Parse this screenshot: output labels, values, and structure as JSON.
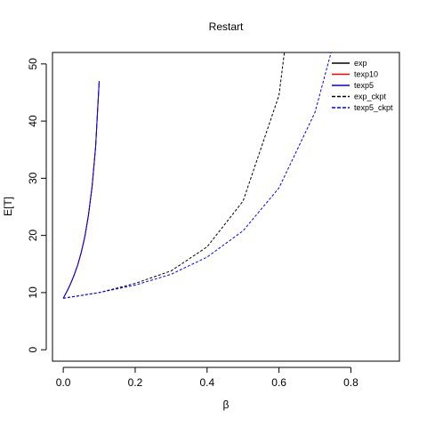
{
  "chart_data": {
    "type": "line",
    "title": "Restart",
    "xlabel": "β",
    "ylabel": "E[T]",
    "xlim": [
      -0.03,
      0.935
    ],
    "ylim": [
      -2,
      52
    ],
    "xticks": [
      0.0,
      0.2,
      0.4,
      0.6,
      0.8
    ],
    "xtick_labels": [
      "0.0",
      "0.2",
      "0.4",
      "0.6",
      "0.8"
    ],
    "yticks": [
      0,
      10,
      20,
      30,
      40,
      50
    ],
    "ytick_labels": [
      "0",
      "10",
      "20",
      "30",
      "40",
      "50"
    ],
    "grid": false,
    "legend_position": "top-right",
    "series": [
      {
        "name": "exp",
        "color": "#000000",
        "dash": "solid",
        "points": [
          [
            0.0,
            9.0
          ],
          [
            0.01,
            10.2
          ],
          [
            0.02,
            11.5
          ],
          [
            0.03,
            13.0
          ],
          [
            0.04,
            14.8
          ],
          [
            0.05,
            17.0
          ],
          [
            0.06,
            19.8
          ],
          [
            0.07,
            23.5
          ],
          [
            0.08,
            28.5
          ],
          [
            0.09,
            35.5
          ],
          [
            0.1,
            47.0
          ]
        ]
      },
      {
        "name": "texp10",
        "color": "#ff0000",
        "dash": "solid",
        "points": [
          [
            0.0,
            9.0
          ],
          [
            0.01,
            10.2
          ],
          [
            0.02,
            11.5
          ],
          [
            0.03,
            13.0
          ],
          [
            0.04,
            14.8
          ],
          [
            0.05,
            17.0
          ],
          [
            0.06,
            19.8
          ],
          [
            0.07,
            23.5
          ],
          [
            0.08,
            28.5
          ],
          [
            0.09,
            35.5
          ],
          [
            0.1,
            47.0
          ]
        ]
      },
      {
        "name": "texp5",
        "color": "#0000ff",
        "dash": "solid",
        "points": [
          [
            0.0,
            9.0
          ],
          [
            0.01,
            10.2
          ],
          [
            0.02,
            11.5
          ],
          [
            0.03,
            13.0
          ],
          [
            0.04,
            14.8
          ],
          [
            0.05,
            17.0
          ],
          [
            0.06,
            19.8
          ],
          [
            0.07,
            23.5
          ],
          [
            0.08,
            28.5
          ],
          [
            0.09,
            35.5
          ],
          [
            0.1,
            47.0
          ]
        ]
      },
      {
        "name": "exp_ckpt",
        "color": "#000000",
        "dash": "dashed",
        "points": [
          [
            0.0,
            9.0
          ],
          [
            0.1,
            10.0
          ],
          [
            0.2,
            11.6
          ],
          [
            0.3,
            13.8
          ],
          [
            0.4,
            18.0
          ],
          [
            0.5,
            26.0
          ],
          [
            0.6,
            44.5
          ],
          [
            0.615,
            52.0
          ]
        ]
      },
      {
        "name": "texp5_ckpt",
        "color": "#0000ff",
        "dash": "dashed",
        "points": [
          [
            0.0,
            9.0
          ],
          [
            0.1,
            10.0
          ],
          [
            0.2,
            11.3
          ],
          [
            0.3,
            13.2
          ],
          [
            0.4,
            16.2
          ],
          [
            0.5,
            20.8
          ],
          [
            0.6,
            28.3
          ],
          [
            0.7,
            41.5
          ],
          [
            0.745,
            52.0
          ]
        ]
      }
    ]
  }
}
